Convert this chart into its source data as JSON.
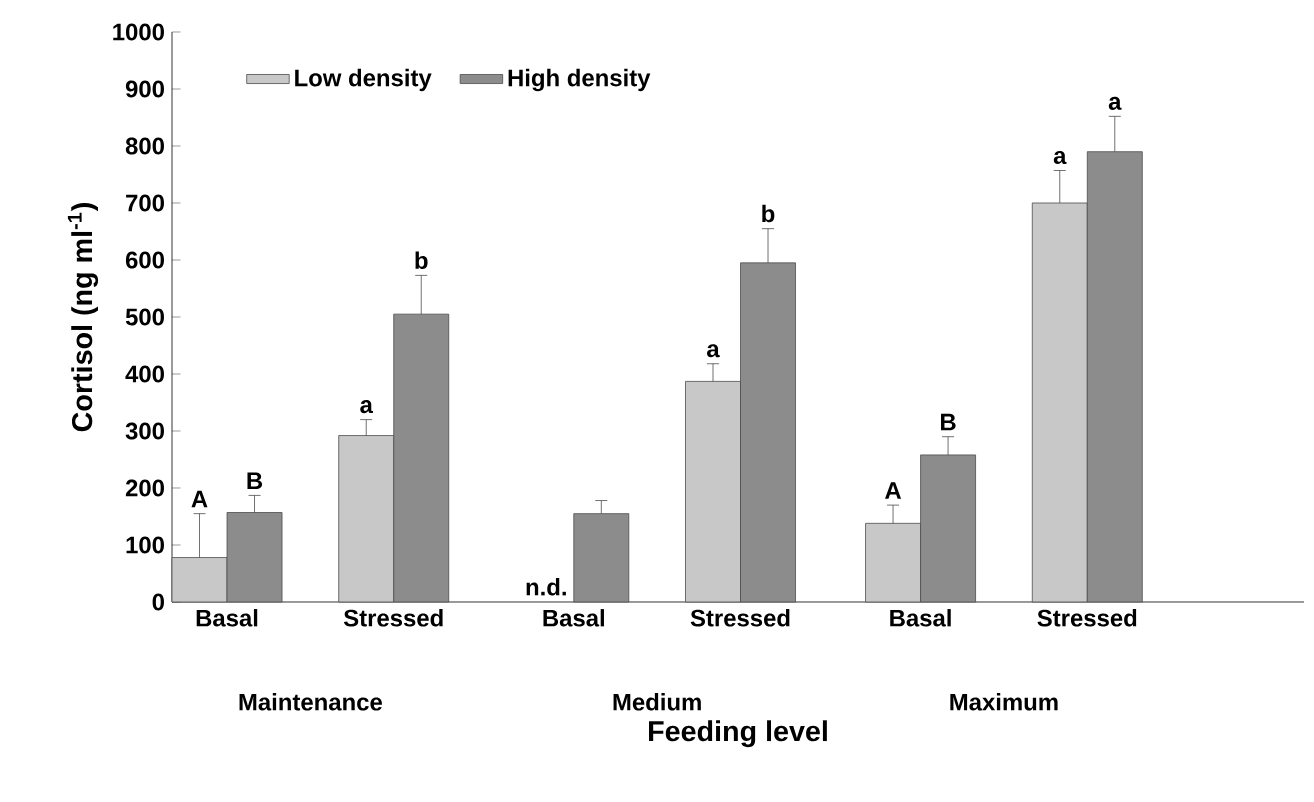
{
  "chart_data": {
    "type": "bar",
    "xlabel": "Feeding level",
    "ylabel": "Cortisol (ng ml$^{-1}$)",
    "categories": [
      "Basal",
      "Stressed",
      "Basal",
      "Stressed",
      "Basal",
      "Stressed"
    ],
    "annotations": [
      "Maintenance",
      "Medium",
      "Maximum"
    ],
    "series": [
      {
        "name": "Low density",
        "color": "#c8c8c8",
        "values": [
          78,
          292,
          null,
          387,
          138,
          700
        ],
        "errors": [
          [
            78,
            155
          ],
          [
            292,
            320
          ],
          null,
          [
            387,
            418
          ],
          [
            138,
            170
          ],
          [
            700,
            757
          ]
        ],
        "value_labels": [
          "A",
          "a",
          "n.d.",
          "a",
          "A",
          "a"
        ]
      },
      {
        "name": "High density",
        "color": "#8c8c8c",
        "values": [
          157,
          505,
          155,
          595,
          258,
          790
        ],
        "errors": [
          [
            157,
            187
          ],
          [
            505,
            573
          ],
          [
            155,
            178
          ],
          [
            595,
            655
          ],
          [
            258,
            290
          ],
          [
            790,
            852
          ]
        ],
        "value_labels": [
          "B",
          "b",
          null,
          "b",
          "B",
          "a"
        ]
      }
    ],
    "ylim": [
      0,
      1000
    ],
    "yticks": [
      0,
      100,
      200,
      300,
      400,
      500,
      600,
      700,
      800,
      900,
      1000
    ],
    "legend": "top left",
    "grid": false
  }
}
